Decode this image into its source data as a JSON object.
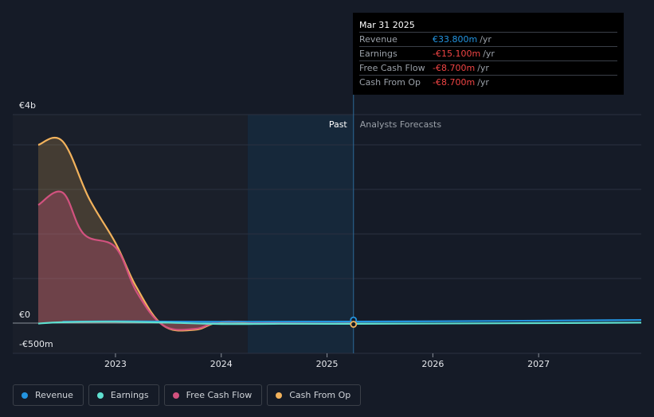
{
  "tooltip": {
    "date": "Mar 31 2025",
    "rows": [
      {
        "label": "Revenue",
        "value": "€33.800m",
        "unit": "/yr",
        "color": "#2394e0"
      },
      {
        "label": "Earnings",
        "value": "-€15.100m",
        "unit": "/yr",
        "color": "#ef4444"
      },
      {
        "label": "Free Cash Flow",
        "value": "-€8.700m",
        "unit": "/yr",
        "color": "#ef4444"
      },
      {
        "label": "Cash From Op",
        "value": "-€8.700m",
        "unit": "/yr",
        "color": "#ef4444"
      }
    ]
  },
  "legend": [
    {
      "label": "Revenue",
      "color": "#2394e0"
    },
    {
      "label": "Earnings",
      "color": "#5fe0d0"
    },
    {
      "label": "Free Cash Flow",
      "color": "#d2527f"
    },
    {
      "label": "Cash From Op",
      "color": "#f2b25c"
    }
  ],
  "chart_data": {
    "type": "area",
    "x_ticks": [
      "2023",
      "2024",
      "2025",
      "2026",
      "2027"
    ],
    "y_tick_labels": [
      "€4b",
      "€0",
      "-€500m"
    ],
    "ylim": [
      -500,
      4000
    ],
    "xlim": [
      2022.27,
      2027.97
    ],
    "past_label": "Past",
    "forecast_label": "Analysts Forecasts",
    "past_end": 2025.25,
    "shade_start": 2024.25,
    "grid": true,
    "legend_position": "bottom",
    "series": [
      {
        "name": "Revenue",
        "color": "#2394e0",
        "x": [
          2022.5,
          2023.0,
          2023.5,
          2024.0,
          2024.5,
          2025.0,
          2025.25,
          2026.0,
          2027.0,
          2027.97
        ],
        "values": [
          30,
          40,
          35,
          30,
          32,
          34,
          34,
          40,
          55,
          70
        ]
      },
      {
        "name": "Earnings",
        "color": "#5fe0d0",
        "x": [
          2022.27,
          2022.5,
          2023.0,
          2023.5,
          2024.0,
          2024.5,
          2025.0,
          2025.25,
          2026.0,
          2027.0,
          2027.97
        ],
        "values": [
          -10,
          20,
          30,
          10,
          -20,
          -15,
          -15,
          -15,
          -10,
          0,
          10
        ]
      },
      {
        "name": "Free Cash Flow",
        "color": "#d2527f",
        "x": [
          2022.27,
          2022.5,
          2022.7,
          2023.0,
          2023.2,
          2023.45,
          2023.75,
          2024.0,
          2024.5,
          2025.0,
          2025.25
        ],
        "values": [
          2650,
          2930,
          2000,
          1700,
          700,
          -50,
          -130,
          30,
          0,
          -10,
          -8.7
        ]
      },
      {
        "name": "Cash From Op",
        "color": "#f2b25c",
        "x": [
          2022.27,
          2022.5,
          2022.75,
          2023.0,
          2023.2,
          2023.45,
          2023.75,
          2024.0,
          2024.5,
          2025.0,
          2025.25
        ],
        "values": [
          4000,
          4080,
          2800,
          1800,
          800,
          -50,
          -150,
          20,
          -10,
          -10,
          -8.7
        ]
      }
    ]
  }
}
